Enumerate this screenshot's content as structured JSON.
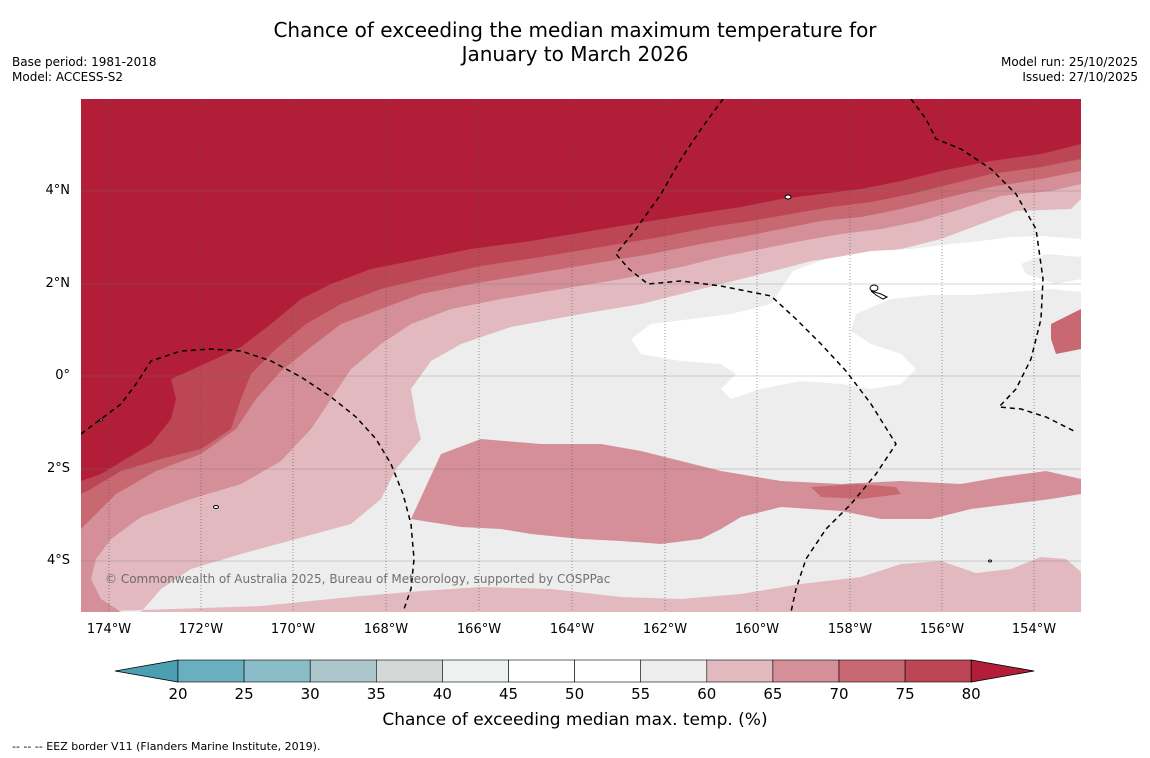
{
  "title_line1": "Chance of exceeding the median maximum temperature for",
  "title_line2": "January to March 2026",
  "base_period": "Base period: 1981-2018",
  "model": "Model: ACCESS-S2",
  "model_run": "Model run: 25/10/2025",
  "issued": "Issued: 27/10/2025",
  "lat_labels": [
    "4°N",
    "2°N",
    "0°",
    "2°S",
    "4°S"
  ],
  "lon_labels": [
    "174°W",
    "172°W",
    "170°W",
    "168°W",
    "166°W",
    "164°W",
    "162°W",
    "160°W",
    "158°W",
    "156°W",
    "154°W"
  ],
  "copyright": "© Commonwealth of Australia 2025, Bureau of Meteorology, supported by COSPPac",
  "colorbar": {
    "ticks": [
      "20",
      "25",
      "30",
      "35",
      "40",
      "45",
      "50",
      "55",
      "60",
      "65",
      "70",
      "75",
      "80"
    ],
    "colors": [
      "#4a9fb0",
      "#6aafbf",
      "#8bbdc8",
      "#abc7cc",
      "#d5d8d8",
      "#edf1f1",
      "#ffffff",
      "#ffffff",
      "#eeeded",
      "#e1b9bf",
      "#d48f98",
      "#c86972",
      "#bd4655",
      "#b21e38"
    ],
    "title": "Chance of exceeding median max. temp. (%)"
  },
  "footnote": "--  --  -- EEZ border V11 (Flanders Marine Institute, 2019)."
}
